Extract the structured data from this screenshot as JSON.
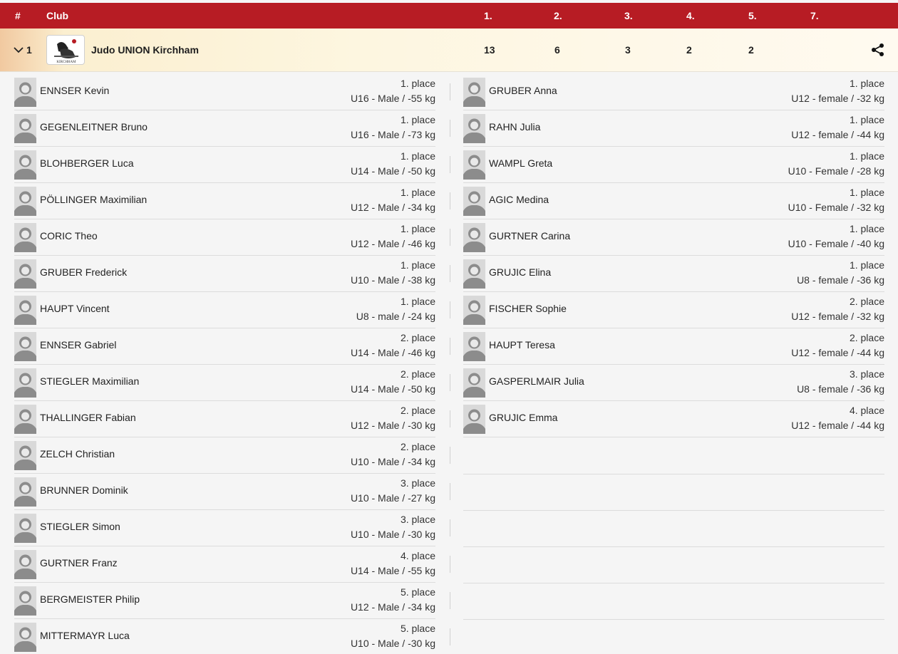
{
  "header": {
    "hash": "#",
    "club": "Club",
    "cols": [
      "1.",
      "2.",
      "3.",
      "4.",
      "5.",
      "7."
    ]
  },
  "club_row": {
    "rank": "1",
    "name": "Judo UNION Kirchham",
    "logo_text": "KIRCHHAM",
    "counts": [
      "13",
      "6",
      "3",
      "2",
      "2"
    ],
    "icons": {
      "expand": "chevron-down-icon",
      "share": "share-icon",
      "avatar": "person-avatar-icon"
    }
  },
  "athletes_male": [
    {
      "name": "ENNSER Kevin",
      "place": "1. place",
      "category": "U16 - Male / -55 kg"
    },
    {
      "name": "GEGENLEITNER Bruno",
      "place": "1. place",
      "category": "U16 - Male / -73 kg"
    },
    {
      "name": "BLOHBERGER Luca",
      "place": "1. place",
      "category": "U14 - Male / -50 kg"
    },
    {
      "name": "PÖLLINGER Maximilian",
      "place": "1. place",
      "category": "U12 - Male / -34 kg"
    },
    {
      "name": "CORIC Theo",
      "place": "1. place",
      "category": "U12 - Male / -46 kg"
    },
    {
      "name": "GRUBER Frederick",
      "place": "1. place",
      "category": "U10 - Male / -38 kg"
    },
    {
      "name": "HAUPT Vincent",
      "place": "1. place",
      "category": "U8 - male / -24 kg"
    },
    {
      "name": "ENNSER Gabriel",
      "place": "2. place",
      "category": "U14 - Male / -46 kg"
    },
    {
      "name": "STIEGLER Maximilian",
      "place": "2. place",
      "category": "U14 - Male / -50 kg"
    },
    {
      "name": "THALLINGER Fabian",
      "place": "2. place",
      "category": "U12 - Male / -30 kg"
    },
    {
      "name": "ZELCH Christian",
      "place": "2. place",
      "category": "U10 - Male / -34 kg"
    },
    {
      "name": "BRUNNER Dominik",
      "place": "3. place",
      "category": "U10 - Male / -27 kg"
    },
    {
      "name": "STIEGLER Simon",
      "place": "3. place",
      "category": "U10 - Male / -30 kg"
    },
    {
      "name": "GURTNER Franz",
      "place": "4. place",
      "category": "U14 - Male / -55 kg"
    },
    {
      "name": "BERGMEISTER Philip",
      "place": "5. place",
      "category": "U12 - Male / -34 kg"
    },
    {
      "name": "MITTERMAYR Luca",
      "place": "5. place",
      "category": "U10 - Male / -30 kg"
    }
  ],
  "athletes_female": [
    {
      "name": "GRUBER Anna",
      "place": "1. place",
      "category": "U12 - female / -32 kg"
    },
    {
      "name": "RAHN Julia",
      "place": "1. place",
      "category": "U12 - female / -44 kg"
    },
    {
      "name": "WAMPL Greta",
      "place": "1. place",
      "category": "U10 - Female / -28 kg"
    },
    {
      "name": "AGIC Medina",
      "place": "1. place",
      "category": "U10 - Female / -32 kg"
    },
    {
      "name": "GURTNER Carina",
      "place": "1. place",
      "category": "U10 - Female / -40 kg"
    },
    {
      "name": "GRUJIC Elina",
      "place": "1. place",
      "category": "U8 - female / -36 kg"
    },
    {
      "name": "FISCHER Sophie",
      "place": "2. place",
      "category": "U12 - female / -32 kg"
    },
    {
      "name": "HAUPT Teresa",
      "place": "2. place",
      "category": "U12 - female / -44 kg"
    },
    {
      "name": "GASPERLMAIR Julia",
      "place": "3. place",
      "category": "U8 - female / -36 kg"
    },
    {
      "name": "GRUJIC Emma",
      "place": "4. place",
      "category": "U12 - female / -44 kg"
    }
  ]
}
